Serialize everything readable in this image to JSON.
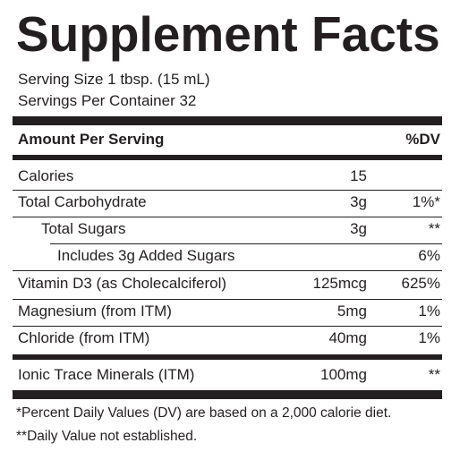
{
  "title": "Supplement Facts",
  "serving_size": "Serving Size 1 tbsp. (15 mL)",
  "servings_per_container": "Servings Per Container 32",
  "header": {
    "amount_label": "Amount Per Serving",
    "dv_label": "%DV"
  },
  "rows": [
    {
      "name": "Calories",
      "amount": "15",
      "dv": ""
    },
    {
      "name": "Total Carbohydrate",
      "amount": "3g",
      "dv": "1%*"
    },
    {
      "name": "Total Sugars",
      "amount": "3g",
      "dv": "**"
    },
    {
      "name": "Includes 3g Added Sugars",
      "amount": "",
      "dv": "6%"
    },
    {
      "name": "Vitamin D3 (as Cholecalciferol)",
      "amount": "125mcg",
      "dv": "625%"
    },
    {
      "name": "Magnesium (from ITM)",
      "amount": "5mg",
      "dv": "1%"
    },
    {
      "name": "Chloride (from ITM)",
      "amount": "40mg",
      "dv": "1%"
    },
    {
      "name": "Ionic Trace Minerals (ITM)",
      "amount": "100mg",
      "dv": "**"
    }
  ],
  "footnotes": [
    "*Percent Daily Values (DV) are based on a 2,000 calorie diet.",
    "**Daily Value not established."
  ]
}
